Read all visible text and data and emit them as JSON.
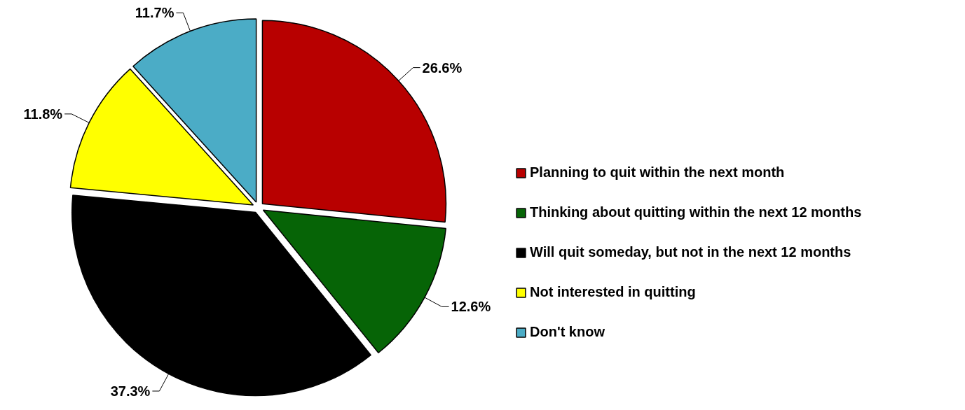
{
  "chart_data": {
    "type": "pie",
    "categories": [
      "Planning to quit within the next month",
      "Thinking about quitting within the next 12 months",
      "Will quit someday, but not in the next 12 months",
      "Not interested in quitting",
      "Don't know"
    ],
    "values": [
      26.6,
      12.6,
      37.3,
      11.8,
      11.7
    ],
    "value_labels": [
      "26.6%",
      "12.6%",
      "37.3%",
      "11.8%",
      "11.7%"
    ],
    "colors": [
      "#b80000",
      "#066406",
      "#000000",
      "#ffff00",
      "#4bacc6"
    ],
    "legend": "right"
  }
}
